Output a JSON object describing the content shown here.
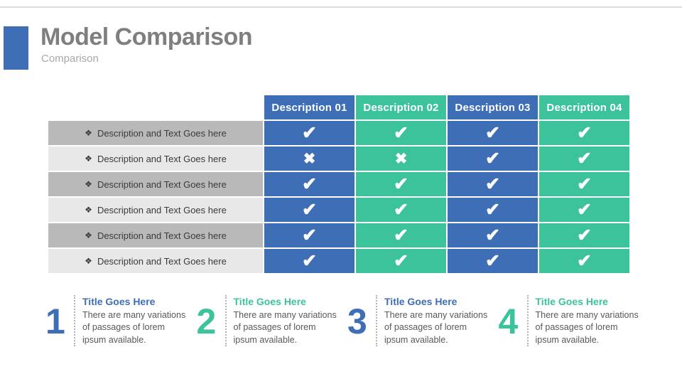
{
  "slide": {
    "title": "Model Comparison",
    "subtitle": "Comparison"
  },
  "colors": {
    "blue": "#3E6EB5",
    "green": "#3CC39C",
    "row_dark": "#b9b9b9",
    "row_light": "#e8e8e8",
    "title_gray": "#7f7f7f"
  },
  "icons": {
    "check": "✔",
    "cross": "✖",
    "bullet": "❖"
  },
  "table": {
    "columns": [
      {
        "label": "Description 01",
        "color": "#3E6EB5"
      },
      {
        "label": "Description 02",
        "color": "#3CC39C"
      },
      {
        "label": "Description 03",
        "color": "#3E6EB5"
      },
      {
        "label": "Description 04",
        "color": "#3CC39C"
      }
    ],
    "rows": [
      {
        "label": "Description and Text Goes here",
        "values": [
          "check",
          "check",
          "check",
          "check"
        ]
      },
      {
        "label": "Description and Text Goes here",
        "values": [
          "cross",
          "cross",
          "check",
          "check"
        ]
      },
      {
        "label": "Description and Text Goes here",
        "values": [
          "check",
          "check",
          "check",
          "check"
        ]
      },
      {
        "label": "Description and Text Goes here",
        "values": [
          "check",
          "check",
          "check",
          "check"
        ]
      },
      {
        "label": "Description and Text Goes here",
        "values": [
          "check",
          "check",
          "check",
          "check"
        ]
      },
      {
        "label": "Description and Text Goes here",
        "values": [
          "check",
          "check",
          "check",
          "check"
        ]
      }
    ]
  },
  "features": [
    {
      "number": "1",
      "title": "Title Goes Here",
      "text": "There are many variations of passages of lorem ipsum available.",
      "color": "#3E6EB5"
    },
    {
      "number": "2",
      "title": "Title Goes Here",
      "text": "There are many variations of passages of lorem ipsum available.",
      "color": "#3CC39C"
    },
    {
      "number": "3",
      "title": "Title Goes Here",
      "text": "There are many variations of passages of lorem ipsum available.",
      "color": "#3E6EB5"
    },
    {
      "number": "4",
      "title": "Title Goes Here",
      "text": "There are many variations of passages of lorem ipsum available.",
      "color": "#3CC39C"
    }
  ]
}
